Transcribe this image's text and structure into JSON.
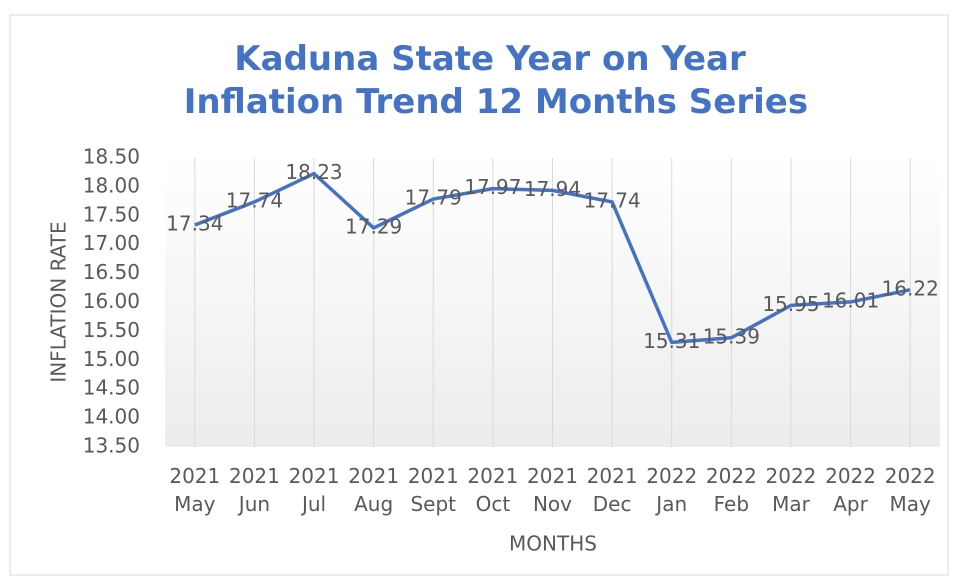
{
  "chart_data": {
    "type": "line",
    "title": "Kaduna State Year on Year Inflation Trend 12 Months Series",
    "y_label": "INFLATION RATE",
    "x_label": "MONTHS",
    "categories": [
      "2021 May",
      "2021 Jun",
      "2021 Jul",
      "2021 Aug",
      "2021 Sept",
      "2021 Oct",
      "2021 Nov",
      "2021 Dec",
      "2022 Jan",
      "2022 Feb",
      "2022 Mar",
      "2022 Apr",
      "2022 May"
    ],
    "series": [
      {
        "name": "Inflation",
        "color": "#4472c4",
        "values": [
          17.34,
          17.74,
          18.23,
          17.29,
          17.79,
          17.97,
          17.94,
          17.74,
          15.31,
          15.39,
          15.95,
          16.01,
          16.22
        ]
      }
    ],
    "ylim": [
      13.5,
      18.5
    ],
    "yticks": [
      {
        "value": 13.5,
        "label": "13.50"
      },
      {
        "value": 14,
        "label": "14.00"
      },
      {
        "value": 14.5,
        "label": "14.50"
      },
      {
        "value": 15,
        "label": "15.00"
      },
      {
        "value": 15.5,
        "label": "15.50"
      },
      {
        "value": 16,
        "label": "16.00"
      },
      {
        "value": 16.5,
        "label": "16.50"
      },
      {
        "value": 17,
        "label": "17.00"
      },
      {
        "value": 17.5,
        "label": "17.50"
      },
      {
        "value": 18,
        "label": "18.00"
      },
      {
        "value": 18.5,
        "label": "18.50"
      }
    ],
    "data_labels": true
  }
}
